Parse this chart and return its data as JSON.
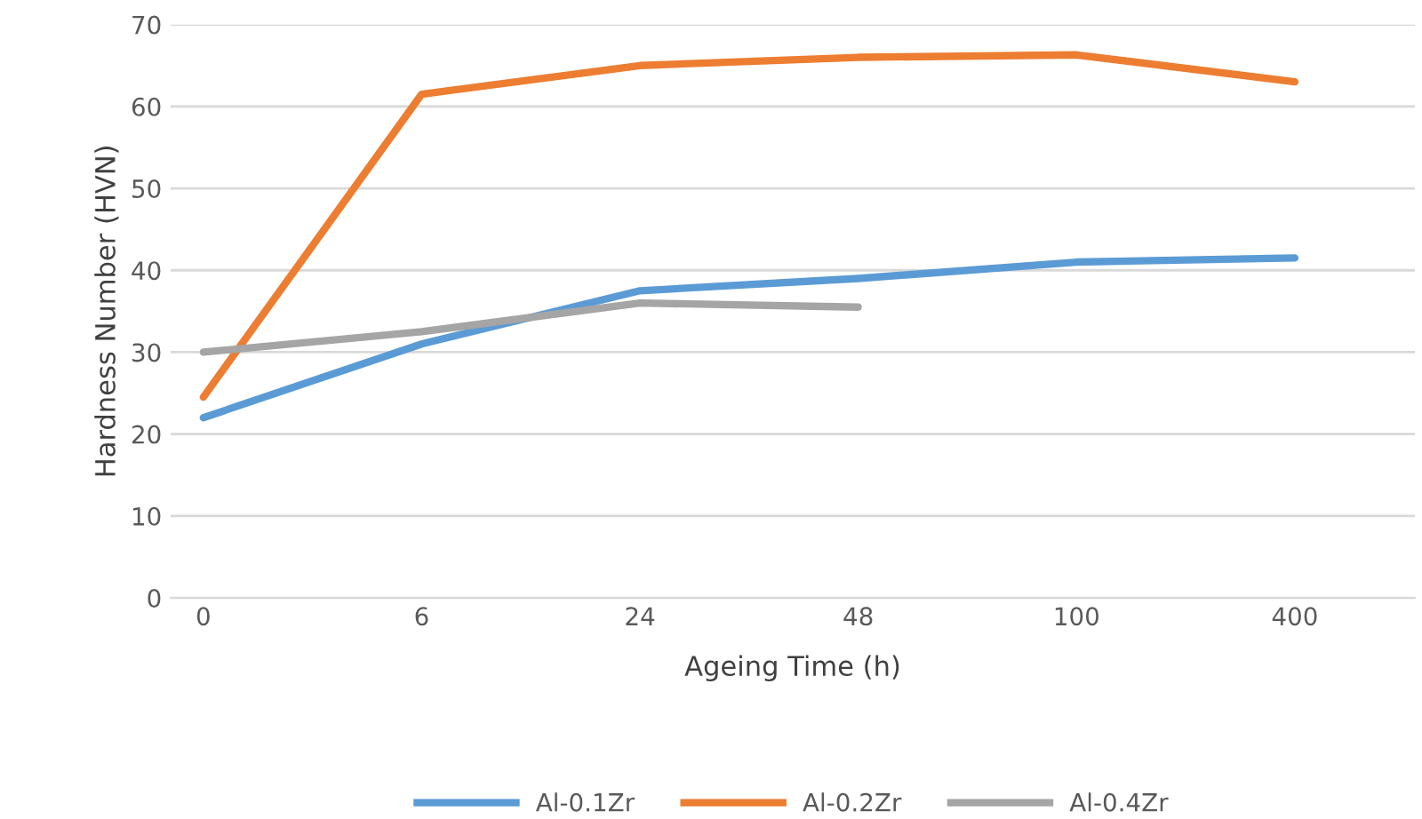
{
  "chart_data": {
    "type": "line",
    "xlabel": "Ageing Time (h)",
    "ylabel": "Hardness Number (HVN)",
    "categories": [
      "0",
      "6",
      "24",
      "48",
      "100",
      "400"
    ],
    "series": [
      {
        "name": "Al-0.1Zr",
        "color": "#5b9bd5",
        "values": [
          22,
          31,
          37.5,
          39,
          41,
          41.5
        ]
      },
      {
        "name": "Al-0.2Zr",
        "color": "#ed7d31",
        "values": [
          24.5,
          61.5,
          65,
          66,
          66.3,
          63
        ]
      },
      {
        "name": "Al-0.4Zr",
        "color": "#a5a5a5",
        "values": [
          30,
          32.5,
          36,
          35.5,
          null,
          null
        ]
      }
    ],
    "ylim": [
      0,
      70
    ],
    "yticks": [
      0,
      10,
      20,
      30,
      40,
      50,
      60,
      70
    ],
    "grid": "y",
    "legend": "bottom",
    "marker": "none",
    "line_style": "solid"
  }
}
